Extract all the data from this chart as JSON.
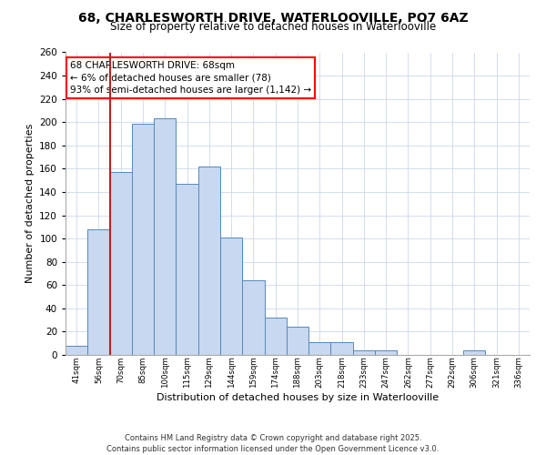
{
  "title": "68, CHARLESWORTH DRIVE, WATERLOOVILLE, PO7 6AZ",
  "subtitle": "Size of property relative to detached houses in Waterlooville",
  "xlabel": "Distribution of detached houses by size in Waterlooville",
  "ylabel": "Number of detached properties",
  "bar_labels": [
    "41sqm",
    "56sqm",
    "70sqm",
    "85sqm",
    "100sqm",
    "115sqm",
    "129sqm",
    "144sqm",
    "159sqm",
    "174sqm",
    "188sqm",
    "203sqm",
    "218sqm",
    "233sqm",
    "247sqm",
    "262sqm",
    "277sqm",
    "292sqm",
    "306sqm",
    "321sqm",
    "336sqm"
  ],
  "bar_values": [
    8,
    108,
    157,
    199,
    203,
    147,
    162,
    101,
    64,
    32,
    24,
    11,
    11,
    4,
    4,
    0,
    0,
    0,
    4,
    0,
    0
  ],
  "bar_color": "#c8d8f0",
  "bar_edge_color": "#5588bb",
  "highlight_color": "#bb2222",
  "ylim_max": 260,
  "annotation_title": "68 CHARLESWORTH DRIVE: 68sqm",
  "annotation_line1": "← 6% of detached houses are smaller (78)",
  "annotation_line2": "93% of semi-detached houses are larger (1,142) →",
  "footer_line1": "Contains HM Land Registry data © Crown copyright and database right 2025.",
  "footer_line2": "Contains public sector information licensed under the Open Government Licence v3.0.",
  "background_color": "#ffffff",
  "grid_color": "#ccd8ec",
  "title_fontsize": 10,
  "subtitle_fontsize": 8.5,
  "ylabel_fontsize": 8,
  "xlabel_fontsize": 8,
  "ann_fontsize": 7.5,
  "footer_fontsize": 6
}
